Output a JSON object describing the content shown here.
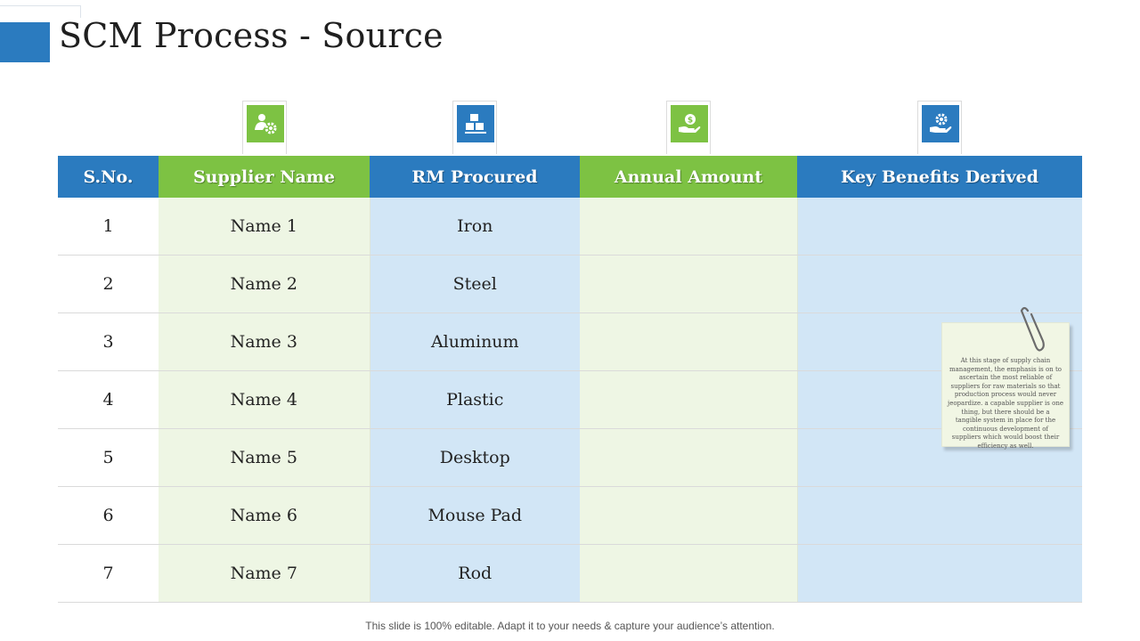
{
  "title": "SCM Process - Source",
  "colors": {
    "blue": "#2b7bbf",
    "green": "#7dc243",
    "light_green": "#eef6e4",
    "light_blue": "#d2e6f6"
  },
  "icons": [
    "supplier-settings-icon",
    "boxes-icon",
    "money-hand-icon",
    "gear-hand-icon"
  ],
  "table": {
    "headers": [
      "S.No.",
      "Supplier Name",
      "RM Procured",
      "Annual Amount",
      "Key Benefits Derived"
    ],
    "rows": [
      [
        "1",
        "Name 1",
        "Iron",
        "",
        ""
      ],
      [
        "2",
        "Name 2",
        "Steel",
        "",
        ""
      ],
      [
        "3",
        "Name 3",
        "Aluminum",
        "",
        ""
      ],
      [
        "4",
        "Name 4",
        "Plastic",
        "",
        ""
      ],
      [
        "5",
        "Name 5",
        "Desktop",
        "",
        ""
      ],
      [
        "6",
        "Name 6",
        "Mouse Pad",
        "",
        ""
      ],
      [
        "7",
        "Name 7",
        "Rod",
        "",
        ""
      ]
    ]
  },
  "note": "At this stage of supply chain management, the emphasis is on to ascertain the most reliable of suppliers for raw materials so that production process would never jeopardize. a capable supplier is one thing, but there should be a tangible system in place for the continuous development of suppliers which would boost their efficiency as well.",
  "footer": "This slide is 100% editable. Adapt it to your needs & capture your audience’s attention."
}
